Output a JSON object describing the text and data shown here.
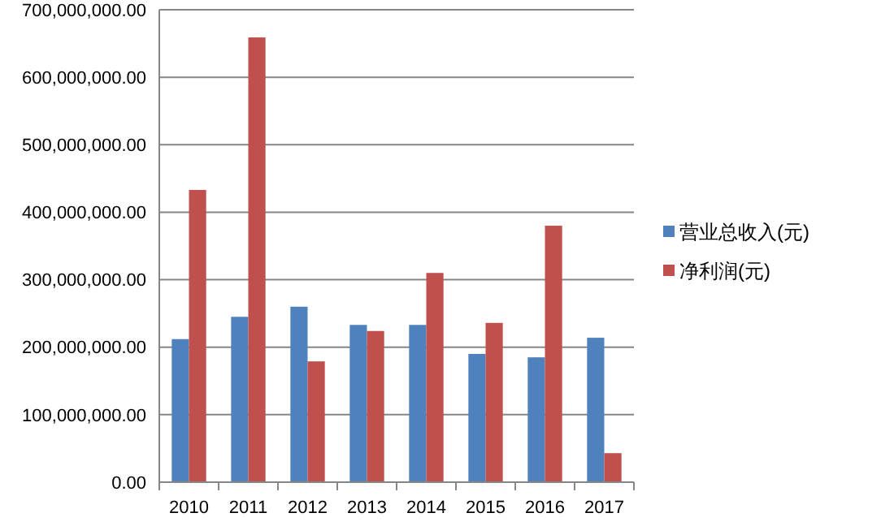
{
  "chart_data": {
    "type": "bar",
    "categories": [
      "2010",
      "2011",
      "2012",
      "2013",
      "2014",
      "2015",
      "2016",
      "2017"
    ],
    "series": [
      {
        "name": "营业总收入(元)",
        "color": "#4f81bd",
        "values": [
          212000000,
          245000000,
          260000000,
          233000000,
          233000000,
          190000000,
          185000000,
          214000000
        ]
      },
      {
        "name": "净利润(元)",
        "color": "#c0504d",
        "values": [
          433000000,
          659000000,
          179000000,
          224000000,
          310000000,
          236000000,
          380000000,
          43000000
        ]
      }
    ],
    "ylim": [
      0,
      700000000
    ],
    "yticks": [
      {
        "value": 0,
        "label": "0.00"
      },
      {
        "value": 100000000,
        "label": "100,000,000.00"
      },
      {
        "value": 200000000,
        "label": "200,000,000.00"
      },
      {
        "value": 300000000,
        "label": "300,000,000.00"
      },
      {
        "value": 400000000,
        "label": "400,000,000.00"
      },
      {
        "value": 500000000,
        "label": "500,000,000.00"
      },
      {
        "value": 600000000,
        "label": "600,000,000.00"
      },
      {
        "value": 700000000,
        "label": "700,000,000.00"
      }
    ],
    "grid": "y",
    "legend": "right"
  }
}
